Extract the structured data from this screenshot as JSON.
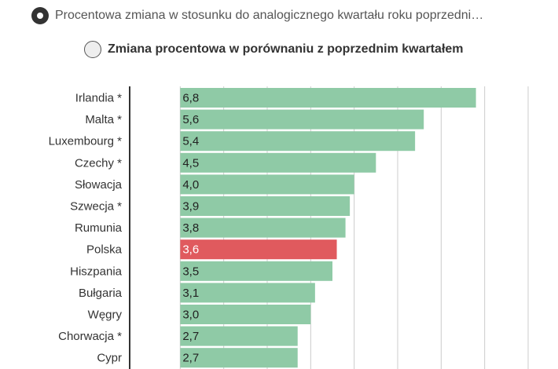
{
  "options": [
    {
      "label": "Procentowa zmiana w stosunku do analogicznego kwartału roku poprzedni…",
      "selected": true
    },
    {
      "label": "Zmiana procentowa w porównaniu z poprzednim kwartałem",
      "selected": false
    }
  ],
  "colors": {
    "bar": "#8fcaa6",
    "highlight": "#e05a5e",
    "axis": "#333333",
    "grid": "#cccccc",
    "label": "#333333",
    "value_label": "#222222",
    "value_label_highlight": "#ffffff"
  },
  "chart_data": {
    "type": "bar",
    "orientation": "horizontal",
    "categories": [
      "Irlandia *",
      "Malta *",
      "Luxembourg *",
      "Czechy *",
      "Słowacja",
      "Szwecja *",
      "Rumunia",
      "Polska",
      "Hiszpania",
      "Bułgaria",
      "Węgry",
      "Chorwacja *",
      "Cypr"
    ],
    "values": [
      6.8,
      5.6,
      5.4,
      4.5,
      4.0,
      3.9,
      3.8,
      3.6,
      3.5,
      3.1,
      3.0,
      2.7,
      2.7
    ],
    "value_labels": [
      "6,8",
      "5,6",
      "5,4",
      "4,5",
      "4,0",
      "3,9",
      "3,8",
      "3,6",
      "3,5",
      "3,1",
      "3,0",
      "2,7",
      "2,7"
    ],
    "highlight": "Polska",
    "xlim": [
      -1,
      8
    ],
    "grid": true,
    "title": "",
    "xlabel": "",
    "ylabel": ""
  }
}
